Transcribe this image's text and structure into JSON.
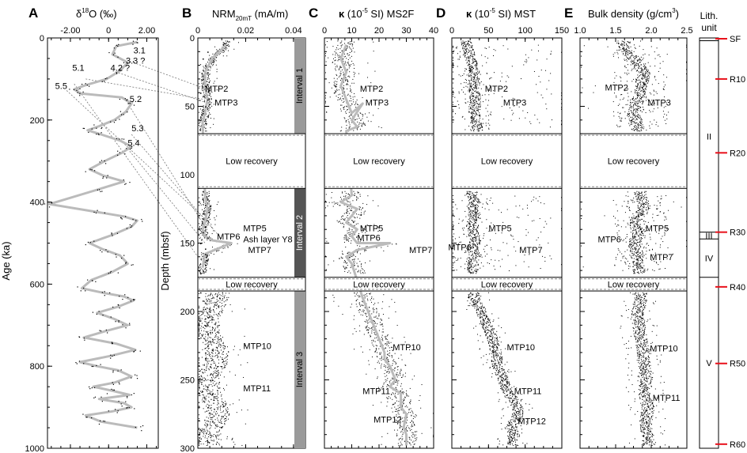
{
  "chart_data": [
    {
      "panel": "A",
      "type": "line",
      "title": "δ18O (‰)",
      "ylabel": "Age (ka)",
      "xlim": [
        -3.2,
        2.6
      ],
      "ylim": [
        0,
        1000
      ],
      "x_ticks": [
        "-2.00",
        "0",
        "2.00"
      ],
      "x_tick_values": [
        -2,
        0,
        2
      ],
      "y_ticks": [
        "0",
        "200",
        "400",
        "600",
        "800",
        "1000"
      ],
      "y_tick_values": [
        0,
        200,
        400,
        600,
        800,
        1000
      ],
      "series": [
        {
          "x": [
            1.5,
            0.4,
            0.2,
            1.0,
            0.6,
            -0.1,
            -1.2,
            -1.8,
            -1.5,
            0.7,
            1.2,
            0.9,
            0.3,
            -0.5,
            -1.1,
            -0.4,
            0.6,
            1.2,
            0.7,
            -0.2,
            -1.0,
            -0.3,
            0.8,
            -0.6,
            -3.1,
            -0.5,
            0.8,
            1.5,
            1.2,
            0.2,
            -1.0,
            -0.3,
            0.6,
            1.0,
            0.2,
            -0.9,
            -1.4,
            -0.2,
            0.8,
            1.3,
            0.5,
            -0.6,
            0.3,
            1.0,
            -0.2,
            -1.3,
            0.4,
            1.4,
            0.1,
            -1.5,
            -0.6,
            0.5,
            1.2,
            0.3,
            -0.8,
            0.2,
            1.1,
            -0.5,
            0.8,
            1.2,
            0.2,
            -1.2,
            -0.4,
            1.5
          ],
          "y": [
            10,
            20,
            40,
            60,
            80,
            100,
            115,
            125,
            135,
            145,
            160,
            180,
            200,
            215,
            225,
            235,
            250,
            265,
            280,
            300,
            320,
            335,
            350,
            370,
            405,
            425,
            435,
            445,
            460,
            480,
            500,
            515,
            530,
            550,
            570,
            590,
            610,
            622,
            630,
            640,
            655,
            670,
            685,
            700,
            715,
            730,
            745,
            760,
            775,
            790,
            800,
            810,
            825,
            840,
            850,
            860,
            870,
            880,
            890,
            900,
            910,
            920,
            935,
            950
          ]
        }
      ],
      "annotations": [
        {
          "text": "3.1",
          "x": 1.3,
          "y": 30
        },
        {
          "text": "3.3 ?",
          "x": 0.9,
          "y": 55
        },
        {
          "text": "4.2 ?",
          "x": 0.1,
          "y": 72
        },
        {
          "text": "5.1",
          "x": -1.9,
          "y": 72
        },
        {
          "text": "5.5",
          "x": -2.8,
          "y": 117
        },
        {
          "text": "5.2",
          "x": 1.1,
          "y": 148
        },
        {
          "text": "5.3",
          "x": 1.2,
          "y": 220
        },
        {
          "text": "5.4",
          "x": 1.0,
          "y": 255
        }
      ]
    },
    {
      "panel": "B",
      "type": "scatter",
      "title": "NRM20mT (mA/m)",
      "ylabel": "Depth (mbsf)",
      "xlim": [
        0,
        0.045
      ],
      "ylim": [
        0,
        300
      ],
      "x_ticks": [
        "0",
        "0.02",
        "0.04"
      ],
      "x_tick_values": [
        0,
        0.02,
        0.04
      ],
      "y_ticks": [
        "0",
        "50",
        "100",
        "150",
        "200",
        "250",
        "300"
      ],
      "y_tick_values": [
        0,
        50,
        100,
        150,
        200,
        250,
        300
      ],
      "series": [
        {
          "name": "NRM20mT",
          "x": [
            0.012,
            0.004,
            0.002,
            0.003,
            0.004,
            0.002,
            0.003,
            0.001,
            0.004,
            0.003,
            0.002,
            0.001,
            0.003,
            0.002,
            0.004,
            0.003,
            0.002,
            0.002,
            0.003,
            0.002,
            0.004,
            0.001,
            0.003,
            0.003,
            0.004,
            0.003,
            0.002,
            0.001,
            0.001,
            0.002,
            0.003,
            0.004,
            0.003,
            0.004,
            0.005,
            0.006,
            0.003,
            0.008,
            0.006,
            0.005,
            0.004,
            0.006,
            0.009,
            0.005,
            0.004,
            0.006,
            0.003,
            0.005,
            0.006,
            0.005,
            0.004,
            0.006,
            0.005,
            0.004,
            0.003,
            0.005,
            0.004,
            0.006
          ],
          "y": [
            5,
            10,
            15,
            20,
            25,
            30,
            35,
            40,
            45,
            50,
            55,
            60,
            62,
            112,
            118,
            122,
            128,
            132,
            138,
            142,
            146,
            150,
            154,
            158,
            162,
            166,
            170,
            172,
            186,
            192,
            198,
            204,
            210,
            216,
            222,
            228,
            234,
            240,
            246,
            250,
            255,
            260,
            190,
            200,
            210,
            220,
            230,
            240,
            250,
            260,
            270,
            280,
            290,
            295,
            205,
            215,
            225,
            235
          ]
        }
      ],
      "smooth": {
        "x": [
          0.012,
          0.006,
          0.003,
          0.003,
          0.004,
          0.003,
          0.002,
          0.003,
          0.004,
          0.003,
          0.002,
          0.003,
          0.006,
          0.014,
          0.003,
          0.002
        ],
        "y": [
          5,
          15,
          25,
          35,
          45,
          55,
          62,
          115,
          125,
          135,
          140,
          145,
          148,
          150,
          158,
          168
        ]
      },
      "annotations": [
        {
          "text": "MTP2",
          "x": 0.003,
          "y": 37
        },
        {
          "text": "MTP3",
          "x": 0.007,
          "y": 47
        },
        {
          "text": "MTP5",
          "x": 0.019,
          "y": 139
        },
        {
          "text": "MTP6",
          "x": 0.008,
          "y": 145
        },
        {
          "text": "Ash layer Y8",
          "x": 0.019,
          "y": 147
        },
        {
          "text": "MTP7",
          "x": 0.021,
          "y": 155
        },
        {
          "text": "MTP10",
          "x": 0.019,
          "y": 225
        },
        {
          "text": "MTP11",
          "x": 0.019,
          "y": 256
        }
      ],
      "intervals": [
        {
          "label": "Interval 1",
          "from": 0,
          "to": 70
        },
        {
          "label": "Interval 2",
          "from": 110,
          "to": 175
        },
        {
          "label": "Interval 3",
          "from": 185,
          "to": 300
        }
      ],
      "low_recovery": [
        {
          "label": "Low recovery",
          "from": 70,
          "to": 110
        },
        {
          "label": "Low recovery",
          "from": 175,
          "to": 185
        }
      ]
    },
    {
      "panel": "C",
      "type": "scatter",
      "title": "κ (10-5 SI) MS2F",
      "xlim": [
        0,
        40
      ],
      "ylim": [
        0,
        300
      ],
      "x_ticks": [
        "0",
        "10",
        "20",
        "30",
        "40"
      ],
      "x_tick_values": [
        0,
        10,
        20,
        30,
        40
      ],
      "smooth": {
        "x": [
          8,
          6,
          8,
          6,
          8,
          10,
          14,
          10,
          12,
          8,
          10,
          6,
          12,
          10,
          8,
          12,
          10,
          12,
          14,
          18,
          24,
          12,
          8,
          10,
          14,
          16,
          18,
          20,
          22,
          22,
          24,
          26,
          24,
          28,
          28,
          30,
          29,
          30,
          30
        ],
        "y": [
          5,
          15,
          25,
          35,
          45,
          55,
          48,
          60,
          65,
          68,
          115,
          120,
          125,
          130,
          135,
          140,
          145,
          150,
          150,
          150,
          150,
          155,
          160,
          165,
          190,
          200,
          210,
          220,
          230,
          235,
          240,
          250,
          255,
          260,
          270,
          275,
          285,
          290,
          298
        ]
      },
      "annotations": [
        {
          "text": "MTP2",
          "x": 13,
          "y": 37
        },
        {
          "text": "MTP3",
          "x": 15,
          "y": 47
        },
        {
          "text": "MTP5",
          "x": 13,
          "y": 139
        },
        {
          "text": "MTP6",
          "x": 12,
          "y": 146
        },
        {
          "text": "MTP7",
          "x": 31,
          "y": 155
        },
        {
          "text": "MTP10",
          "x": 25,
          "y": 226
        },
        {
          "text": "MTP11",
          "x": 14,
          "y": 258
        },
        {
          "text": "MTP12",
          "x": 18,
          "y": 279
        }
      ],
      "low_recovery": [
        {
          "label": "Low recovery",
          "from": 70,
          "to": 110
        },
        {
          "label": "Low recovery",
          "from": 175,
          "to": 185
        }
      ]
    },
    {
      "panel": "D",
      "type": "scatter",
      "title": "κ (10-5 SI) MST",
      "xlim": [
        0,
        150
      ],
      "ylim": [
        0,
        300
      ],
      "x_ticks": [
        "0",
        "50",
        "100",
        "150"
      ],
      "x_tick_values": [
        0,
        50,
        100,
        150
      ],
      "smooth": {
        "x": [
          20,
          25,
          30,
          28,
          32,
          30,
          34,
          26,
          30,
          28,
          32,
          26,
          28,
          30,
          32,
          30,
          28,
          35,
          20,
          28,
          30,
          40,
          48,
          55,
          60,
          62,
          70,
          72,
          78,
          85,
          88,
          90,
          85,
          80,
          85,
          82,
          84
        ],
        "y": [
          5,
          15,
          25,
          35,
          45,
          55,
          65,
          115,
          120,
          125,
          130,
          135,
          140,
          145,
          148,
          150,
          155,
          160,
          150,
          165,
          190,
          200,
          210,
          220,
          230,
          240,
          250,
          255,
          260,
          265,
          270,
          275,
          280,
          285,
          290,
          295,
          298
        ]
      },
      "annotations": [
        {
          "text": "MTP2",
          "x": 45,
          "y": 37
        },
        {
          "text": "MTP3",
          "x": 70,
          "y": 47
        },
        {
          "text": "MTP5",
          "x": 50,
          "y": 139
        },
        {
          "text": "MTP6",
          "x": -5,
          "y": 153
        },
        {
          "text": "MTP7",
          "x": 92,
          "y": 155
        },
        {
          "text": "MTP10",
          "x": 75,
          "y": 226
        },
        {
          "text": "MTP11",
          "x": 85,
          "y": 258
        },
        {
          "text": "MTP12",
          "x": 90,
          "y": 280
        }
      ],
      "low_recovery": [
        {
          "label": "Low recovery",
          "from": 70,
          "to": 110
        },
        {
          "label": "Low recovery",
          "from": 175,
          "to": 185
        }
      ]
    },
    {
      "panel": "E",
      "type": "scatter",
      "title": "Bulk density (g/cm3)",
      "xlim": [
        1,
        2.5
      ],
      "ylim": [
        0,
        300
      ],
      "x_ticks": [
        "1.0",
        "1.5",
        "2.0",
        "2.5"
      ],
      "x_tick_values": [
        1.0,
        1.5,
        2.0,
        2.5
      ],
      "smooth": {
        "x": [
          1.6,
          1.75,
          1.9,
          1.85,
          1.8,
          1.75,
          1.8,
          1.85,
          1.9,
          1.75,
          1.78,
          1.8,
          1.75,
          1.78,
          1.8,
          1.82,
          1.85,
          1.8,
          1.82,
          1.85,
          1.88,
          1.9,
          1.92,
          1.9,
          1.95,
          1.92,
          1.95
        ],
        "y": [
          5,
          15,
          25,
          35,
          45,
          55,
          65,
          115,
          125,
          135,
          140,
          145,
          150,
          155,
          160,
          165,
          190,
          200,
          210,
          220,
          230,
          240,
          250,
          260,
          270,
          280,
          295
        ]
      },
      "annotations": [
        {
          "text": "MTP2",
          "x": 1.35,
          "y": 36
        },
        {
          "text": "MTP3",
          "x": 1.95,
          "y": 47
        },
        {
          "text": "MTP5",
          "x": 1.92,
          "y": 139
        },
        {
          "text": "MTP6",
          "x": 1.25,
          "y": 147
        },
        {
          "text": "MTP7",
          "x": 1.98,
          "y": 160
        },
        {
          "text": "MTP10",
          "x": 1.98,
          "y": 227
        },
        {
          "text": "MTP11",
          "x": 2.02,
          "y": 263
        }
      ],
      "low_recovery": [
        {
          "label": "Low recovery",
          "from": 70,
          "to": 110
        },
        {
          "label": "Low recovery",
          "from": 175,
          "to": 185
        }
      ]
    },
    {
      "panel": "Lith.",
      "type": "table",
      "title": "Lith. unit",
      "units": [
        {
          "label": "",
          "from": 0,
          "to": 2
        },
        {
          "label": "II",
          "from": 2,
          "to": 142
        },
        {
          "label": "III",
          "from": 142,
          "to": 147
        },
        {
          "label": "IV",
          "from": 147,
          "to": 175
        },
        {
          "label": "V",
          "from": 175,
          "to": 300
        }
      ],
      "markers": [
        {
          "label": "SF",
          "depth": 0
        },
        {
          "label": "R10",
          "depth": 30
        },
        {
          "label": "R20",
          "depth": 84
        },
        {
          "label": "R30",
          "depth": 142
        },
        {
          "label": "R40",
          "depth": 182
        },
        {
          "label": "R50",
          "depth": 238
        },
        {
          "label": "R60",
          "depth": 297
        }
      ],
      "marker_color": "#e8101a"
    }
  ],
  "colors": {
    "smooth_line": "#bbbbbb",
    "interval_light": "#9a9a9a",
    "interval_dark": "#555555",
    "marker": "#e8101a"
  }
}
